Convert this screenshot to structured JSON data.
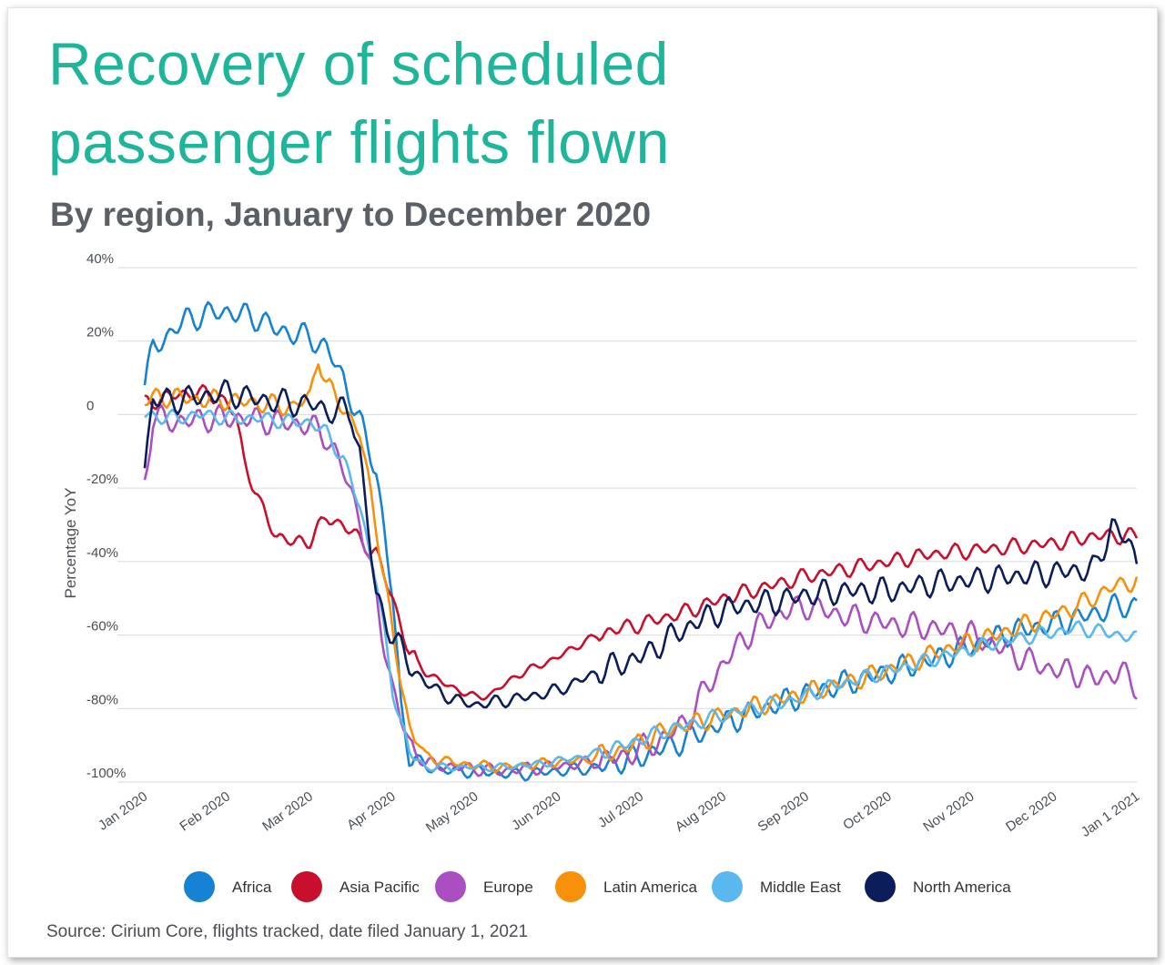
{
  "title": "Recovery of scheduled passenger flights flown",
  "subtitle": "By region, January to December 2020",
  "source": "Source: Cirium Core, flights tracked, date filed January 1, 2021",
  "chart_data": {
    "type": "line",
    "title": "Recovery of scheduled passenger flights flown",
    "subtitle": "By region, January to December 2020",
    "ylabel": "Percentage YoY",
    "xlabel": "",
    "ylim": [
      -100,
      40
    ],
    "yticks": [
      40,
      20,
      0,
      -20,
      -40,
      -60,
      -80,
      -100
    ],
    "ytick_labels": [
      "40%",
      "20%",
      "0",
      "-20%",
      "-40%",
      "-60%",
      "-80%",
      "-100%"
    ],
    "xtick_labels": [
      "Jan 2020",
      "Feb 2020",
      "Mar 2020",
      "Apr 2020",
      "May 2020",
      "Jun 2020",
      "Jul 2020",
      "Aug 2020",
      "Sep 2020",
      "Oct 2020",
      "Nov 2020",
      "Dec 2020",
      "Jan 1 2021"
    ],
    "x_unit": "month index (0 = Jan 1 2020, 12 = Jan 1 2021)",
    "grid": true,
    "legend_position": "bottom",
    "series": [
      {
        "name": "Africa",
        "color": "#1582d3",
        "points": [
          [
            0,
            8
          ],
          [
            0.1,
            18
          ],
          [
            0.3,
            22
          ],
          [
            0.5,
            26
          ],
          [
            0.7,
            27
          ],
          [
            0.9,
            28
          ],
          [
            1.0,
            28
          ],
          [
            1.2,
            27
          ],
          [
            1.4,
            26
          ],
          [
            1.6,
            23
          ],
          [
            1.8,
            22
          ],
          [
            2.0,
            21
          ],
          [
            2.2,
            18
          ],
          [
            2.4,
            10
          ],
          [
            2.6,
            -2
          ],
          [
            2.8,
            -15
          ],
          [
            3.0,
            -50
          ],
          [
            3.1,
            -80
          ],
          [
            3.2,
            -92
          ],
          [
            3.4,
            -96
          ],
          [
            3.7,
            -97
          ],
          [
            4.0,
            -97
          ],
          [
            4.5,
            -98
          ],
          [
            5.0,
            -97
          ],
          [
            5.5,
            -96
          ],
          [
            6.0,
            -93
          ],
          [
            6.5,
            -89
          ],
          [
            7.0,
            -84
          ],
          [
            7.5,
            -80
          ],
          [
            8.0,
            -76
          ],
          [
            8.5,
            -73
          ],
          [
            9.0,
            -70
          ],
          [
            9.5,
            -67
          ],
          [
            10.0,
            -63
          ],
          [
            10.5,
            -59
          ],
          [
            11.0,
            -57
          ],
          [
            11.5,
            -54
          ],
          [
            11.8,
            -52
          ],
          [
            12.0,
            -52
          ]
        ]
      },
      {
        "name": "Asia Pacific",
        "color": "#c8102e",
        "points": [
          [
            0,
            3
          ],
          [
            0.3,
            5
          ],
          [
            0.6,
            6
          ],
          [
            0.9,
            5
          ],
          [
            1.1,
            0
          ],
          [
            1.2,
            -12
          ],
          [
            1.4,
            -25
          ],
          [
            1.6,
            -33
          ],
          [
            1.8,
            -35
          ],
          [
            2.0,
            -34
          ],
          [
            2.2,
            -28
          ],
          [
            2.4,
            -30
          ],
          [
            2.6,
            -34
          ],
          [
            2.8,
            -38
          ],
          [
            3.0,
            -50
          ],
          [
            3.2,
            -65
          ],
          [
            3.4,
            -70
          ],
          [
            3.6,
            -73
          ],
          [
            3.8,
            -75
          ],
          [
            4.0,
            -77
          ],
          [
            4.2,
            -76
          ],
          [
            4.5,
            -71
          ],
          [
            4.8,
            -68
          ],
          [
            5.0,
            -66
          ],
          [
            5.3,
            -62
          ],
          [
            5.6,
            -59
          ],
          [
            6.0,
            -57
          ],
          [
            6.5,
            -54
          ],
          [
            7.0,
            -50
          ],
          [
            7.5,
            -47
          ],
          [
            8.0,
            -44
          ],
          [
            8.5,
            -42
          ],
          [
            9.0,
            -40
          ],
          [
            9.5,
            -38
          ],
          [
            10.0,
            -37
          ],
          [
            10.5,
            -36
          ],
          [
            11.0,
            -35
          ],
          [
            11.5,
            -33
          ],
          [
            11.8,
            -33
          ],
          [
            12.0,
            -33
          ]
        ]
      },
      {
        "name": "Europe",
        "color": "#a94fc2",
        "points": [
          [
            0,
            -18
          ],
          [
            0.1,
            -1
          ],
          [
            0.4,
            -2
          ],
          [
            0.8,
            -1
          ],
          [
            1.2,
            -1
          ],
          [
            1.6,
            -2
          ],
          [
            2.0,
            -3
          ],
          [
            2.2,
            -6
          ],
          [
            2.4,
            -15
          ],
          [
            2.6,
            -28
          ],
          [
            2.8,
            -50
          ],
          [
            3.0,
            -75
          ],
          [
            3.2,
            -90
          ],
          [
            3.4,
            -95
          ],
          [
            3.8,
            -96
          ],
          [
            4.3,
            -97
          ],
          [
            4.8,
            -96
          ],
          [
            5.3,
            -95
          ],
          [
            5.8,
            -93
          ],
          [
            6.0,
            -91
          ],
          [
            6.3,
            -88
          ],
          [
            6.6,
            -82
          ],
          [
            6.8,
            -74
          ],
          [
            7.0,
            -68
          ],
          [
            7.2,
            -62
          ],
          [
            7.4,
            -58
          ],
          [
            7.7,
            -54
          ],
          [
            8.0,
            -52
          ],
          [
            8.5,
            -55
          ],
          [
            9.0,
            -57
          ],
          [
            9.5,
            -58
          ],
          [
            10.0,
            -60
          ],
          [
            10.5,
            -65
          ],
          [
            10.9,
            -69
          ],
          [
            11.2,
            -70
          ],
          [
            11.5,
            -72
          ],
          [
            11.8,
            -70
          ],
          [
            12.0,
            -74
          ]
        ]
      },
      {
        "name": "Latin America",
        "color": "#f7900a",
        "points": [
          [
            0,
            4
          ],
          [
            0.3,
            5
          ],
          [
            0.7,
            4
          ],
          [
            1.0,
            4
          ],
          [
            1.4,
            3
          ],
          [
            1.8,
            2
          ],
          [
            2.0,
            5
          ],
          [
            2.1,
            16
          ],
          [
            2.2,
            8
          ],
          [
            2.4,
            2
          ],
          [
            2.6,
            -5
          ],
          [
            2.8,
            -30
          ],
          [
            3.0,
            -60
          ],
          [
            3.2,
            -85
          ],
          [
            3.4,
            -93
          ],
          [
            3.8,
            -95
          ],
          [
            4.3,
            -96
          ],
          [
            4.8,
            -95
          ],
          [
            5.3,
            -94
          ],
          [
            5.8,
            -91
          ],
          [
            6.3,
            -86
          ],
          [
            6.8,
            -83
          ],
          [
            7.3,
            -80
          ],
          [
            7.8,
            -77
          ],
          [
            8.3,
            -74
          ],
          [
            8.8,
            -71
          ],
          [
            9.3,
            -67
          ],
          [
            9.8,
            -63
          ],
          [
            10.3,
            -60
          ],
          [
            10.8,
            -56
          ],
          [
            11.3,
            -52
          ],
          [
            11.7,
            -47
          ],
          [
            12.0,
            -45
          ]
        ]
      },
      {
        "name": "Middle East",
        "color": "#5bb8ef",
        "points": [
          [
            0,
            0
          ],
          [
            0.3,
            -1
          ],
          [
            0.7,
            0
          ],
          [
            1.0,
            -1
          ],
          [
            1.4,
            -1
          ],
          [
            1.8,
            -2
          ],
          [
            2.0,
            -2
          ],
          [
            2.2,
            -5
          ],
          [
            2.4,
            -12
          ],
          [
            2.6,
            -25
          ],
          [
            2.8,
            -45
          ],
          [
            3.0,
            -75
          ],
          [
            3.2,
            -92
          ],
          [
            3.4,
            -96
          ],
          [
            3.8,
            -96
          ],
          [
            4.3,
            -96
          ],
          [
            4.8,
            -95
          ],
          [
            5.3,
            -93
          ],
          [
            5.8,
            -90
          ],
          [
            6.3,
            -86
          ],
          [
            6.8,
            -83
          ],
          [
            7.3,
            -80
          ],
          [
            7.8,
            -78
          ],
          [
            8.3,
            -74
          ],
          [
            8.8,
            -71
          ],
          [
            9.3,
            -68
          ],
          [
            9.8,
            -65
          ],
          [
            10.3,
            -62
          ],
          [
            10.8,
            -60
          ],
          [
            11.3,
            -58
          ],
          [
            11.8,
            -60
          ],
          [
            12.0,
            -61
          ]
        ]
      },
      {
        "name": "North America",
        "color": "#0b1d5a",
        "points": [
          [
            0,
            -14
          ],
          [
            0.1,
            4
          ],
          [
            0.4,
            4
          ],
          [
            0.7,
            5
          ],
          [
            1.0,
            6
          ],
          [
            1.4,
            4
          ],
          [
            1.8,
            3
          ],
          [
            2.0,
            3
          ],
          [
            2.2,
            1
          ],
          [
            2.4,
            1
          ],
          [
            2.5,
            0
          ],
          [
            2.6,
            -10
          ],
          [
            2.7,
            -30
          ],
          [
            2.8,
            -50
          ],
          [
            3.0,
            -60
          ],
          [
            3.2,
            -68
          ],
          [
            3.4,
            -73
          ],
          [
            3.6,
            -76
          ],
          [
            3.8,
            -78
          ],
          [
            4.0,
            -79
          ],
          [
            4.3,
            -78
          ],
          [
            4.6,
            -77
          ],
          [
            5.0,
            -75
          ],
          [
            5.3,
            -72
          ],
          [
            5.6,
            -69
          ],
          [
            6.0,
            -66
          ],
          [
            6.4,
            -60
          ],
          [
            6.8,
            -55
          ],
          [
            7.2,
            -52
          ],
          [
            7.6,
            -51
          ],
          [
            8.0,
            -49
          ],
          [
            8.5,
            -48
          ],
          [
            9.0,
            -48
          ],
          [
            9.5,
            -46
          ],
          [
            10.0,
            -45
          ],
          [
            10.5,
            -44
          ],
          [
            11.0,
            -43
          ],
          [
            11.5,
            -42
          ],
          [
            11.7,
            -30
          ],
          [
            11.9,
            -35
          ],
          [
            12.0,
            -40
          ]
        ]
      }
    ]
  }
}
